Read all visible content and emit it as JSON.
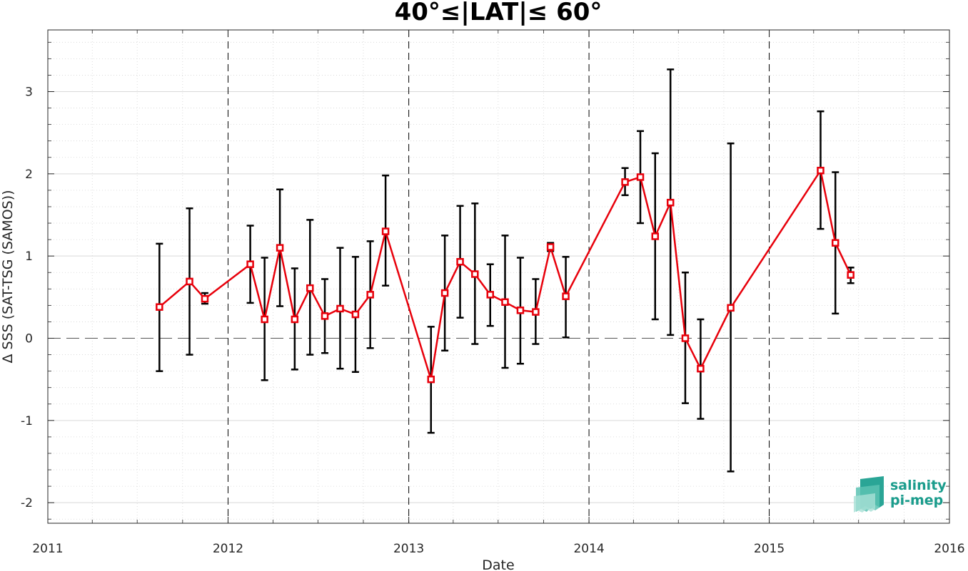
{
  "chart_data": {
    "type": "line",
    "title": "40°≤|LAT|≤ 60°",
    "xlabel": "Date",
    "ylabel": "Δ SSS (SAT-TSG (SAMOS))",
    "xlim": [
      "2011-01-01",
      "2016-01-01"
    ],
    "ylim": [
      -2.25,
      3.75
    ],
    "x_ticks": [
      "2011",
      "2012",
      "2013",
      "2014",
      "2015",
      "2016"
    ],
    "y_ticks": [
      -2,
      -1,
      0,
      1,
      2,
      3
    ],
    "y_tick_labels": [
      "-2",
      "-1",
      "0",
      "1",
      "2",
      "3"
    ],
    "grid": true,
    "year_separator_lines": [
      "2012",
      "2013",
      "2014",
      "2015"
    ],
    "zero_reference_line": 0,
    "series": [
      {
        "color": "#e8000b",
        "marker": "square",
        "error_bar_color": "#000000",
        "points": [
          {
            "x": "2011-08-15",
            "y": 0.38,
            "low": -0.4,
            "high": 1.15
          },
          {
            "x": "2011-10-15",
            "y": 0.69,
            "low": -0.2,
            "high": 1.58
          },
          {
            "x": "2011-11-15",
            "y": 0.48,
            "low": 0.42,
            "high": 0.55
          },
          {
            "x": "2012-02-15",
            "y": 0.9,
            "low": 0.43,
            "high": 1.37
          },
          {
            "x": "2012-03-15",
            "y": 0.23,
            "low": -0.51,
            "high": 0.98
          },
          {
            "x": "2012-04-15",
            "y": 1.1,
            "low": 0.39,
            "high": 1.81
          },
          {
            "x": "2012-05-15",
            "y": 0.23,
            "low": -0.38,
            "high": 0.85
          },
          {
            "x": "2012-06-15",
            "y": 0.61,
            "low": -0.2,
            "high": 1.44
          },
          {
            "x": "2012-07-15",
            "y": 0.27,
            "low": -0.18,
            "high": 0.72
          },
          {
            "x": "2012-08-15",
            "y": 0.36,
            "low": -0.37,
            "high": 1.1
          },
          {
            "x": "2012-09-15",
            "y": 0.29,
            "low": -0.41,
            "high": 0.99
          },
          {
            "x": "2012-10-15",
            "y": 0.53,
            "low": -0.12,
            "high": 1.18
          },
          {
            "x": "2012-11-15",
            "y": 1.3,
            "low": 0.64,
            "high": 1.98
          },
          {
            "x": "2013-02-15",
            "y": -0.5,
            "low": -1.15,
            "high": 0.14
          },
          {
            "x": "2013-03-15",
            "y": 0.55,
            "low": -0.15,
            "high": 1.25
          },
          {
            "x": "2013-04-15",
            "y": 0.93,
            "low": 0.25,
            "high": 1.61
          },
          {
            "x": "2013-05-15",
            "y": 0.78,
            "low": -0.07,
            "high": 1.64
          },
          {
            "x": "2013-06-15",
            "y": 0.53,
            "low": 0.15,
            "high": 0.9
          },
          {
            "x": "2013-07-15",
            "y": 0.44,
            "low": -0.36,
            "high": 1.25
          },
          {
            "x": "2013-08-15",
            "y": 0.34,
            "low": -0.31,
            "high": 0.98
          },
          {
            "x": "2013-09-15",
            "y": 0.32,
            "low": -0.07,
            "high": 0.72
          },
          {
            "x": "2013-10-15",
            "y": 1.11,
            "low": 1.06,
            "high": 1.16
          },
          {
            "x": "2013-11-15",
            "y": 0.51,
            "low": 0.01,
            "high": 0.99
          },
          {
            "x": "2014-03-15",
            "y": 1.9,
            "low": 1.74,
            "high": 2.07
          },
          {
            "x": "2014-04-15",
            "y": 1.96,
            "low": 1.4,
            "high": 2.52
          },
          {
            "x": "2014-05-15",
            "y": 1.24,
            "low": 0.23,
            "high": 2.25
          },
          {
            "x": "2014-06-15",
            "y": 1.65,
            "low": 0.04,
            "high": 3.27
          },
          {
            "x": "2014-07-15",
            "y": 0.0,
            "low": -0.79,
            "high": 0.8
          },
          {
            "x": "2014-08-15",
            "y": -0.37,
            "low": -0.98,
            "high": 0.23
          },
          {
            "x": "2014-10-15",
            "y": 0.37,
            "low": -1.62,
            "high": 2.37
          },
          {
            "x": "2015-04-15",
            "y": 2.04,
            "low": 1.33,
            "high": 2.76
          },
          {
            "x": "2015-05-15",
            "y": 1.16,
            "low": 0.3,
            "high": 2.02
          },
          {
            "x": "2015-06-15",
            "y": 0.77,
            "low": 0.67,
            "high": 0.86
          }
        ]
      }
    ]
  },
  "logo": {
    "line1": "salinity",
    "line2": "pi-mep",
    "color": "#1a9c8c"
  }
}
